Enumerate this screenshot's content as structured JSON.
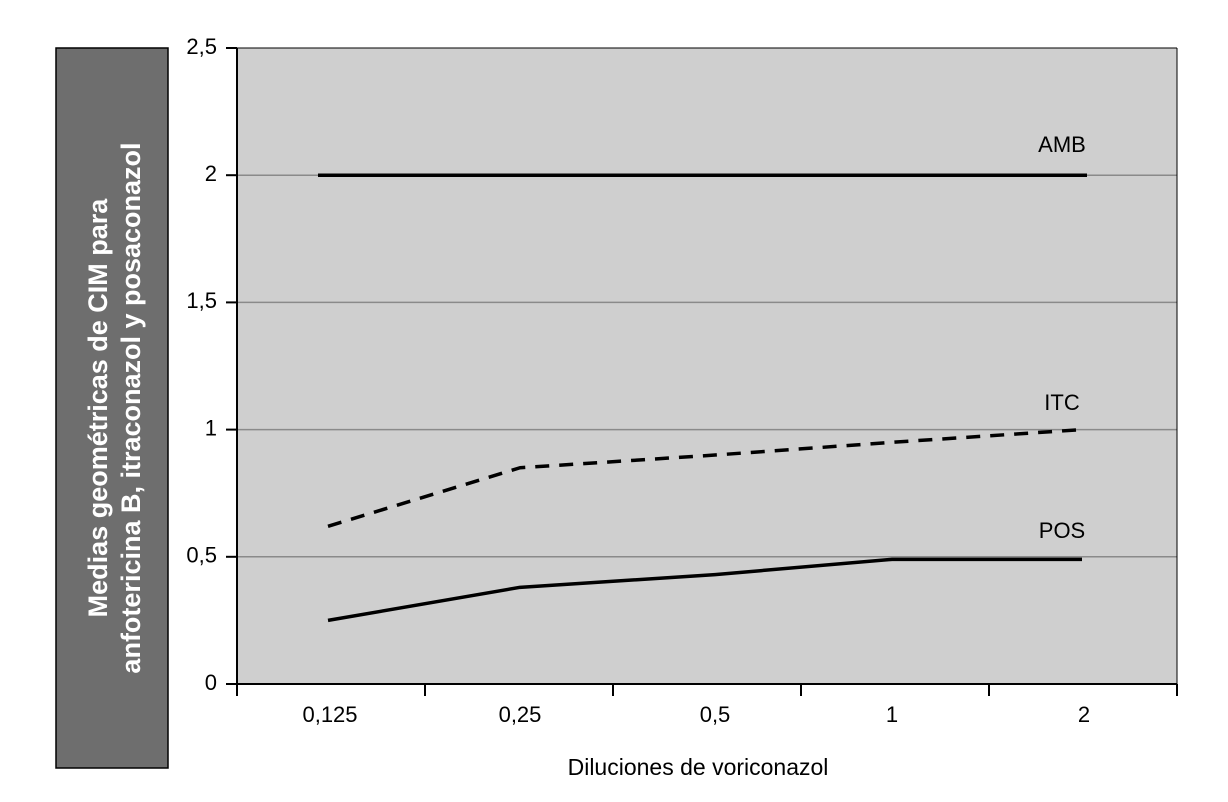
{
  "chart_data": {
    "type": "line",
    "title": "",
    "xlabel": "Diluciones de voriconazol",
    "ylabel": [
      "Medias geométricas de CIM para",
      "anfotericina B, itraconazol y posaconazol"
    ],
    "categories": [
      "0,125",
      "0,25",
      "0,5",
      "1",
      "2"
    ],
    "ylim": [
      0,
      2.5
    ],
    "yticks": [
      0,
      0.5,
      1,
      1.5,
      2,
      2.5
    ],
    "ytick_labels": [
      "0",
      "0,5",
      "1",
      "1,5",
      "2",
      "2,5"
    ],
    "grid": true,
    "series": [
      {
        "name": "AMB",
        "values": [
          2,
          2,
          2,
          2,
          2
        ],
        "style": "solid",
        "color": "#000000"
      },
      {
        "name": "ITC",
        "values": [
          0.62,
          0.85,
          0.9,
          0.95,
          1.0
        ],
        "style": "dashed",
        "color": "#000000"
      },
      {
        "name": "POS",
        "values": [
          0.25,
          0.38,
          0.43,
          0.49,
          0.49
        ],
        "style": "solid",
        "color": "#000000"
      }
    ],
    "colors": {
      "plot_bg": "#cfcfcf",
      "gridline": "#8a8a8a",
      "ylabel_box": "#6e6e6e"
    }
  }
}
